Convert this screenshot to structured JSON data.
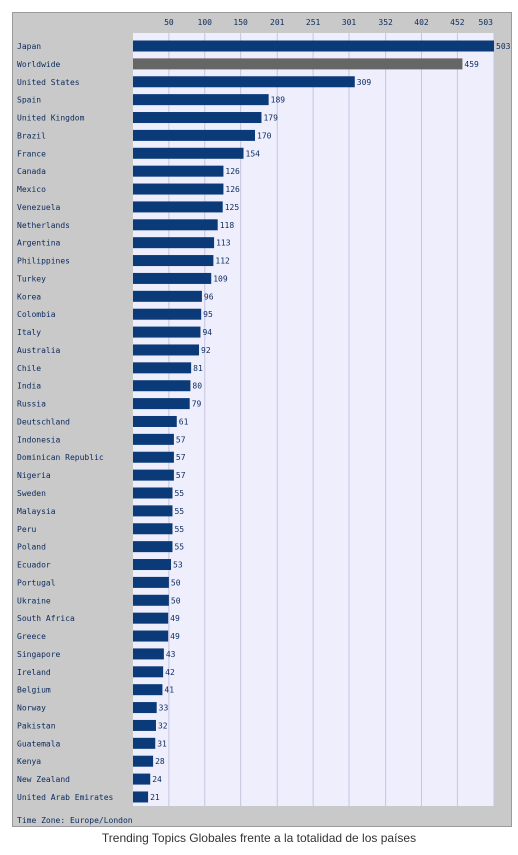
{
  "colors": {
    "bar": "#0b3a78",
    "highlight": "#666666",
    "plot_bg": "#eeeefc",
    "frame_bg": "#c9c9c9",
    "grid": "#c5c5e0",
    "text": "#0b2a5e"
  },
  "footer": {
    "timezone": "Time Zone: Europe/London"
  },
  "caption": "Trending Topics Globales frente a la totalidad de los países",
  "chart_data": {
    "type": "bar",
    "orientation": "horizontal",
    "xlim": [
      0,
      503
    ],
    "x_ticks": [
      50,
      100,
      150,
      201,
      251,
      301,
      352,
      402,
      452,
      503
    ],
    "tick_position": "top",
    "grid": true,
    "highlight_category": "Worldwide",
    "categories": [
      "Japan",
      "Worldwide",
      "United States",
      "Spain",
      "United Kingdom",
      "Brazil",
      "France",
      "Canada",
      "Mexico",
      "Venezuela",
      "Netherlands",
      "Argentina",
      "Philippines",
      "Turkey",
      "Korea",
      "Colombia",
      "Italy",
      "Australia",
      "Chile",
      "India",
      "Russia",
      "Deutschland",
      "Indonesia",
      "Dominican Republic",
      "Nigeria",
      "Sweden",
      "Malaysia",
      "Peru",
      "Poland",
      "Ecuador",
      "Portugal",
      "Ukraine",
      "South Africa",
      "Greece",
      "Singapore",
      "Ireland",
      "Belgium",
      "Norway",
      "Pakistan",
      "Guatemala",
      "Kenya",
      "New Zealand",
      "United Arab Emirates"
    ],
    "values": [
      503,
      459,
      309,
      189,
      179,
      170,
      154,
      126,
      126,
      125,
      118,
      113,
      112,
      109,
      96,
      95,
      94,
      92,
      81,
      80,
      79,
      61,
      57,
      57,
      57,
      55,
      55,
      55,
      55,
      53,
      50,
      50,
      49,
      49,
      43,
      42,
      41,
      33,
      32,
      31,
      28,
      24,
      21
    ]
  }
}
